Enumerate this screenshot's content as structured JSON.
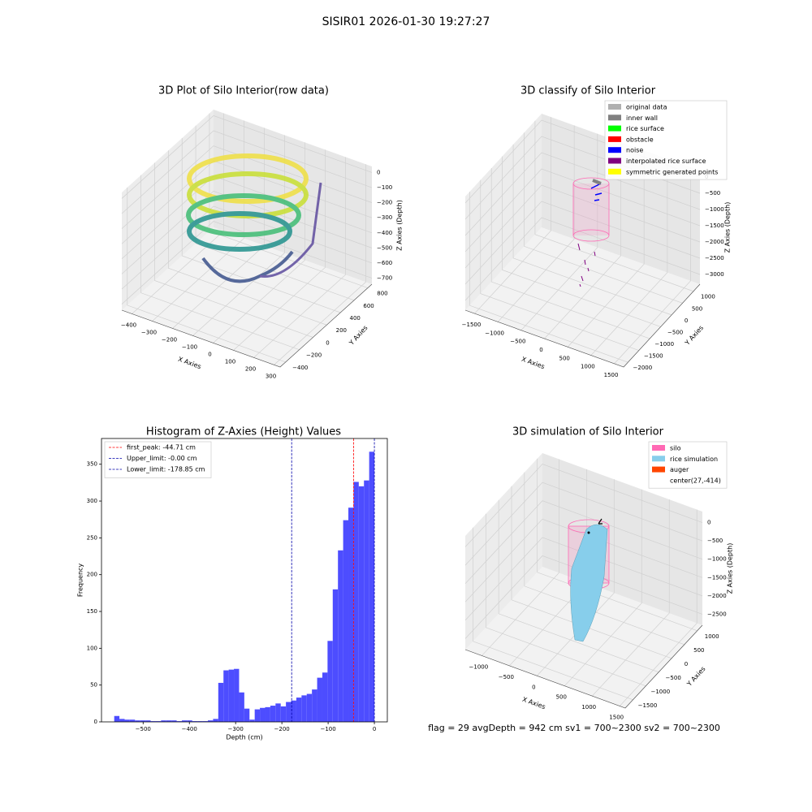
{
  "title": "SISIR01 2026-01-30 19:27:27",
  "footer": "flag = 29  avgDepth = 942 cm  sv1 = 700~2300  sv2 = 700~2300",
  "chart_data": [
    {
      "type": "scatter3d",
      "title": "3D Plot of Silo Interior(row data)",
      "x_label": "X Axies",
      "y_label": "Y Axies",
      "z_label": "Z Axies (Depth)",
      "xlim": [
        -450,
        330
      ],
      "ylim": [
        -480,
        860
      ],
      "zlim": [
        -740,
        40
      ],
      "xticks": [
        {
          "value": -400,
          "label": "−400"
        },
        {
          "value": -300,
          "label": "−300"
        },
        {
          "value": -200,
          "label": "−200"
        },
        {
          "value": -100,
          "label": "−100"
        },
        0,
        100,
        200,
        300
      ],
      "yticks": [
        {
          "value": -400,
          "label": "−400"
        },
        {
          "value": -200,
          "label": "−200"
        },
        0,
        200,
        400,
        600,
        800
      ],
      "zticks": [
        {
          "value": -700,
          "label": "−700"
        },
        {
          "value": -600,
          "label": "−600"
        },
        {
          "value": -500,
          "label": "−500"
        },
        {
          "value": -400,
          "label": "−400"
        },
        {
          "value": -300,
          "label": "−300"
        },
        {
          "value": -200,
          "label": "−200"
        },
        {
          "value": -100,
          "label": "−100"
        },
        0
      ]
    },
    {
      "type": "scatter3d",
      "title": "3D classify of Silo Interior",
      "x_label": "X Axies",
      "y_label": "Y Axies",
      "z_label": "Z Axies (Depth)",
      "xlim": [
        -1700,
        1700
      ],
      "ylim": [
        -2200,
        1300
      ],
      "zlim": [
        -3300,
        200
      ],
      "xticks": [
        {
          "value": -1500,
          "label": "−1500"
        },
        {
          "value": -1000,
          "label": "−1000"
        },
        {
          "value": -500,
          "label": "−500"
        },
        0,
        500,
        1000,
        1500
      ],
      "yticks": [
        {
          "value": -2000,
          "label": "−2000"
        },
        {
          "value": -1500,
          "label": "−1500"
        },
        {
          "value": -1000,
          "label": "−1000"
        },
        {
          "value": -500,
          "label": "−500"
        },
        0,
        500,
        1000
      ],
      "zticks": [
        {
          "value": -3000,
          "label": "−3000"
        },
        {
          "value": -2500,
          "label": "−2500"
        },
        {
          "value": -2000,
          "label": "−2000"
        },
        {
          "value": -1500,
          "label": "−1500"
        },
        {
          "value": -1000,
          "label": "−1000"
        },
        {
          "value": -500,
          "label": "−500"
        },
        0
      ],
      "legend": [
        {
          "name": "original data",
          "color": "#b0b0b0"
        },
        {
          "name": "inner wall",
          "color": "#808080"
        },
        {
          "name": "rice surface",
          "color": "#00ff00"
        },
        {
          "name": "obstacle",
          "color": "#ff0000"
        },
        {
          "name": "noise",
          "color": "#0000ff"
        },
        {
          "name": "interpolated rice surface",
          "color": "#800080"
        },
        {
          "name": "symmetric generated points",
          "color": "#ffff00"
        }
      ]
    },
    {
      "type": "histogram",
      "title": "Histogram of Z-Axies (Height) Values",
      "x_label": "Depth (cm)",
      "y_label": "Frequency",
      "color": "#4d4dff",
      "bins": [
        -562.5,
        -551.25,
        -540,
        -528.75,
        -517.5,
        -506.25,
        -495,
        -483.75,
        -472.5,
        -461.25,
        -450,
        -438.75,
        -427.5,
        -416.25,
        -405,
        -393.75,
        -382.5,
        -371.25,
        -360,
        -348.75,
        -337.5,
        -326.25,
        -315,
        -303.75,
        -292.5,
        -281.25,
        -270,
        -258.75,
        -247.5,
        -236.25,
        -225,
        -213.75,
        -202.5,
        -191.25,
        -180,
        -168.75,
        -157.5,
        -146.25,
        -135,
        -123.75,
        -112.5,
        -101.25,
        -90,
        -78.75,
        -67.5,
        -56.25,
        -45,
        -33.75,
        -22.5,
        -11.25,
        0
      ],
      "values": [
        8,
        4,
        3,
        3,
        2,
        2,
        2,
        1,
        1,
        2,
        2,
        2,
        1,
        2,
        2,
        1,
        1,
        1,
        2,
        4,
        53,
        70,
        71,
        72,
        40,
        18,
        3,
        17,
        19,
        20,
        22,
        25,
        21,
        27,
        29,
        33,
        36,
        38,
        44,
        60,
        67,
        110,
        180,
        233,
        274,
        291,
        326,
        320,
        328,
        367
      ],
      "xlim": [
        -590,
        28
      ],
      "ylim": [
        0,
        385
      ],
      "xticks": [
        {
          "value": -500,
          "label": "−500"
        },
        {
          "value": -400,
          "label": "−400"
        },
        {
          "value": -300,
          "label": "−300"
        },
        {
          "value": -200,
          "label": "−200"
        },
        {
          "value": -100,
          "label": "−100"
        },
        0
      ],
      "yticks": [
        0,
        50,
        100,
        150,
        200,
        250,
        300,
        350
      ],
      "vlines": [
        {
          "label": "first_peak: -44.71 cm",
          "value": -44.71,
          "color": "#ff0000"
        },
        {
          "label": "Upper_limit: -0.00 cm",
          "value": 0,
          "color": "#0000aa"
        },
        {
          "label": "Lower_limit: -178.85 cm",
          "value": -178.85,
          "color": "#0000aa"
        }
      ]
    },
    {
      "type": "surface3d",
      "title": "3D simulation of Silo Interior",
      "x_label": "X Axies",
      "y_label": "Y Axies",
      "z_label": "Z Axies (Depth)",
      "xlim": [
        -1300,
        1600
      ],
      "ylim": [
        -1800,
        1200
      ],
      "zlim": [
        -2800,
        300
      ],
      "xticks": [
        {
          "value": -1000,
          "label": "−1000"
        },
        {
          "value": -500,
          "label": "−500"
        },
        0,
        500,
        1000,
        1500
      ],
      "yticks": [
        {
          "value": -1500,
          "label": "−1500"
        },
        {
          "value": -1000,
          "label": "−1000"
        },
        {
          "value": -500,
          "label": "−500"
        },
        0,
        500,
        1000
      ],
      "zticks": [
        {
          "value": -2500,
          "label": "−2500"
        },
        {
          "value": -2000,
          "label": "−2000"
        },
        {
          "value": -1500,
          "label": "−1500"
        },
        {
          "value": -1000,
          "label": "−1000"
        },
        {
          "value": -500,
          "label": "−500"
        },
        0
      ],
      "legend": [
        {
          "name": "silo",
          "color": "#ff69b4"
        },
        {
          "name": "rice simulation",
          "color": "#87ceeb"
        },
        {
          "name": "auger",
          "color": "#ff4500"
        },
        {
          "name": "center(27,-414)",
          "color": null
        }
      ]
    }
  ]
}
